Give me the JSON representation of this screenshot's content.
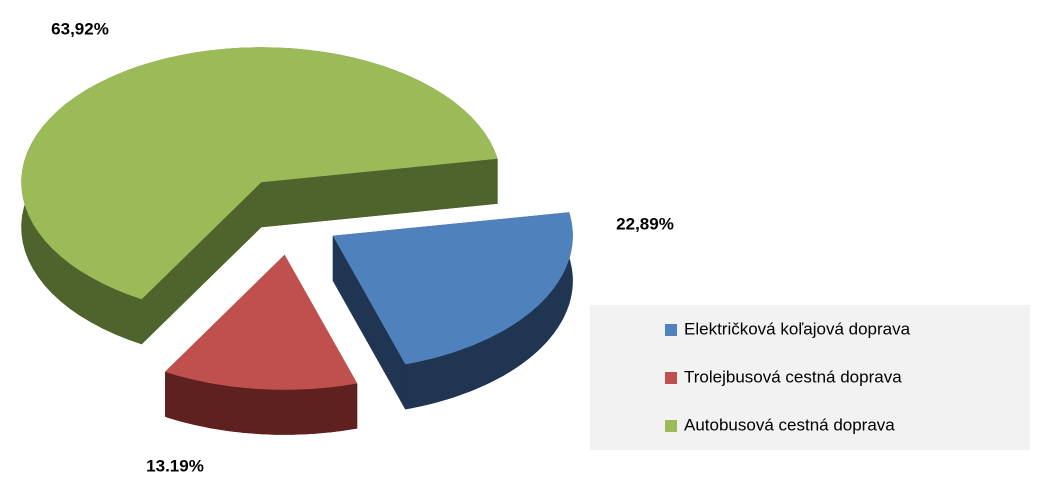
{
  "chart_data": {
    "type": "pie",
    "categories": [
      "Električková koľajová doprava",
      "Trolejbusová cestná doprava",
      "Autobusová cestná doprava"
    ],
    "series": [
      {
        "values": [
          22.89,
          13.19,
          63.92
        ],
        "value_labels": [
          "22,89%",
          "13.19%",
          "63,92%"
        ],
        "colors": [
          "#4f81bd",
          "#c0504d",
          "#9bbb59"
        ],
        "side_colors": [
          "#1f3552",
          "#5e2120",
          "#4f632c"
        ]
      }
    ],
    "legend": "right"
  }
}
